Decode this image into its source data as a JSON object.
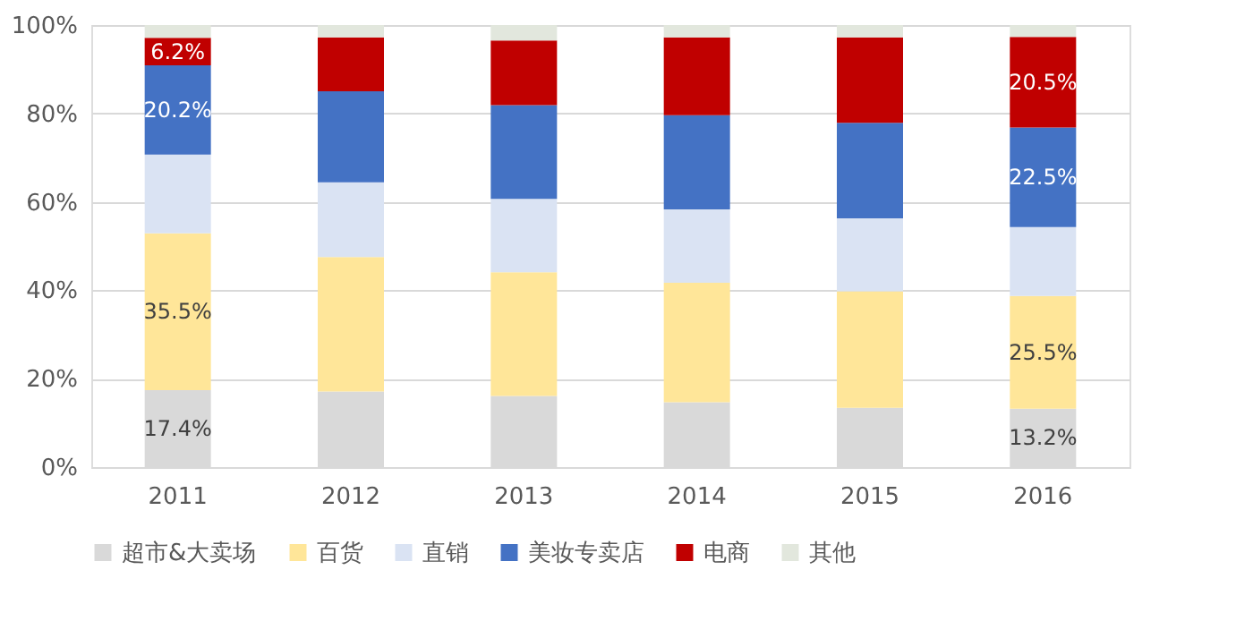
{
  "chart_data": {
    "type": "bar",
    "stacked": true,
    "categories": [
      "2011",
      "2012",
      "2013",
      "2014",
      "2015",
      "2016"
    ],
    "series": [
      {
        "name": "超市&大卖场",
        "color": "#d9d9d9",
        "values": [
          17.4,
          17.1,
          16.1,
          14.7,
          13.4,
          13.2
        ],
        "value_labels": [
          "17.4%",
          null,
          null,
          null,
          null,
          "13.2%"
        ]
      },
      {
        "name": "百货",
        "color": "#ffe699",
        "values": [
          35.5,
          30.4,
          28.0,
          27.0,
          26.4,
          25.5
        ],
        "value_labels": [
          "35.5%",
          null,
          null,
          null,
          null,
          "25.5%"
        ]
      },
      {
        "name": "直销",
        "color": "#dae3f3",
        "values": [
          17.8,
          16.9,
          16.6,
          16.6,
          16.5,
          15.6
        ]
      },
      {
        "name": "美妆专卖店",
        "color": "#4472c4",
        "values": [
          20.2,
          20.6,
          21.2,
          21.3,
          21.6,
          22.5
        ],
        "value_labels": [
          "20.2%",
          null,
          null,
          null,
          null,
          "22.5%"
        ]
      },
      {
        "name": "电商",
        "color": "#c00000",
        "values": [
          6.2,
          12.2,
          14.6,
          17.6,
          19.3,
          20.5
        ],
        "value_labels": [
          "6.2%",
          null,
          null,
          null,
          null,
          "20.5%"
        ]
      },
      {
        "name": "其他",
        "color": "#e2e7dd",
        "values": [
          2.9,
          2.8,
          3.5,
          2.8,
          2.8,
          2.7
        ]
      }
    ],
    "ylim": [
      0,
      100
    ],
    "yticks": [
      {
        "value": 0,
        "label": "0%"
      },
      {
        "value": 20,
        "label": "20%"
      },
      {
        "value": 40,
        "label": "40%"
      },
      {
        "value": 60,
        "label": "60%"
      },
      {
        "value": 80,
        "label": "80%"
      },
      {
        "value": 100,
        "label": "100%"
      }
    ],
    "grid": "y",
    "legend": "bottom"
  }
}
